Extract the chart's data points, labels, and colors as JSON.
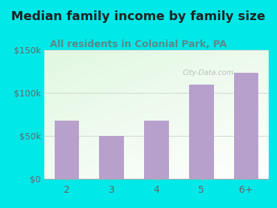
{
  "title": "Median family income by family size",
  "subtitle": "All residents in Colonial Park, PA",
  "categories": [
    "2",
    "3",
    "4",
    "5",
    "6+"
  ],
  "values": [
    68000,
    50000,
    68000,
    110000,
    123000
  ],
  "bar_color": "#b8a0cc",
  "title_fontsize": 13,
  "subtitle_fontsize": 10,
  "subtitle_color": "#5a8a8a",
  "title_color": "#222222",
  "ylim": [
    0,
    150000
  ],
  "yticks": [
    0,
    50000,
    100000,
    150000
  ],
  "ytick_labels": [
    "$0",
    "$50k",
    "$100k",
    "$150k"
  ],
  "background_outer": "#00e8e8",
  "watermark": "City-Data.com",
  "tick_color": "#666666",
  "spine_color": "#aaaaaa"
}
